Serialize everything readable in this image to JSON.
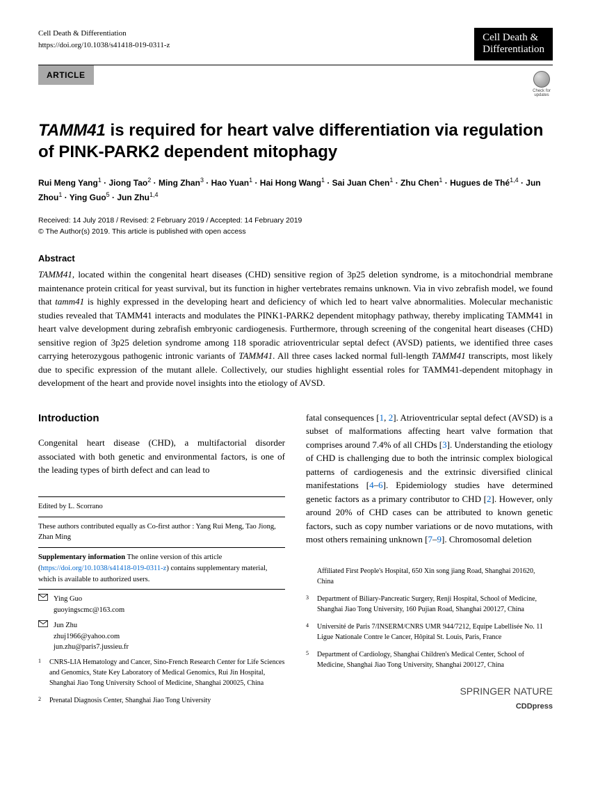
{
  "header": {
    "journal": "Cell Death & Differentiation",
    "doi_url": "https://doi.org/10.1038/s41418-019-0311-z",
    "logo_line1": "Cell Death &",
    "logo_line2": "Differentiation",
    "article_label": "ARTICLE",
    "check_updates": "Check for updates"
  },
  "title_prefix": "TAMM41",
  "title_rest": " is required for heart valve differentiation via regulation of PINK-PARK2 dependent mitophagy",
  "authors_html": "Rui Meng Yang<sup>1</sup> · Jiong Tao<sup>2</sup> · Ming Zhan<sup>3</sup> · Hao Yuan<sup>1</sup> · Hai Hong Wang<sup>1</sup> · Sai Juan Chen<sup>1</sup> · Zhu Chen<sup>1</sup> · Hugues de Thé<sup>1,4</sup> · Jun Zhou<sup>1</sup> · Ying Guo<sup>5</sup> · Jun Zhu<sup>1,4</sup>",
  "dates": {
    "received": "Received: 14 July 2018 / Revised: 2 February 2019 / Accepted: 14 February 2019",
    "copyright": "© The Author(s) 2019. This article is published with open access"
  },
  "abstract": {
    "heading": "Abstract",
    "text_parts": [
      {
        "italic": true,
        "text": "TAMM41"
      },
      {
        "italic": false,
        "text": ", located within the congenital heart diseases (CHD) sensitive region of 3p25 deletion syndrome, is a mitochondrial membrane maintenance protein critical for yeast survival, but its function in higher vertebrates remains unknown. Via in vivo zebrafish model, we found that "
      },
      {
        "italic": true,
        "text": "tamm41"
      },
      {
        "italic": false,
        "text": " is highly expressed in the developing heart and deficiency of which led to heart valve abnormalities. Molecular mechanistic studies revealed that TAMM41 interacts and modulates the PINK1-PARK2 dependent mitophagy pathway, thereby implicating TAMM41 in heart valve development during zebrafish embryonic cardiogenesis. Furthermore, through screening of the congenital heart diseases (CHD) sensitive region of 3p25 deletion syndrome among 118 sporadic atrioventricular septal defect (AVSD) patients, we identified three cases carrying heterozygous pathogenic intronic variants of "
      },
      {
        "italic": true,
        "text": "TAMM41"
      },
      {
        "italic": false,
        "text": ". All three cases lacked normal full-length "
      },
      {
        "italic": true,
        "text": "TAMM41"
      },
      {
        "italic": false,
        "text": " transcripts, most likely due to specific expression of the mutant allele. Collectively, our studies highlight essential roles for TAMM41-dependent mitophagy in development of the heart and provide novel insights into the etiology of AVSD."
      }
    ]
  },
  "introduction": {
    "heading": "Introduction",
    "col1": "Congenital heart disease (CHD), a multifactorial disorder associated with both genetic and environmental factors, is one of the leading types of birth defect and can lead to",
    "col2_parts": [
      {
        "t": "fatal consequences ["
      },
      {
        "r": "1"
      },
      {
        "t": ", "
      },
      {
        "r": "2"
      },
      {
        "t": "]. Atrioventricular septal defect (AVSD) is a subset of malformations affecting heart valve formation that comprises around 7.4% of all CHDs ["
      },
      {
        "r": "3"
      },
      {
        "t": "]. Understanding the etiology of CHD is challenging due to both the intrinsic complex biological patterns of cardiogenesis and the extrinsic diversified clinical manifestations ["
      },
      {
        "r": "4"
      },
      {
        "t": "–"
      },
      {
        "r": "6"
      },
      {
        "t": "]. Epidemiology studies have determined genetic factors as a primary contributor to CHD ["
      },
      {
        "r": "2"
      },
      {
        "t": "]. However, only around 20% of CHD cases can be attributed to known genetic factors, such as copy number variations or de novo mutations, with most others remaining unknown ["
      },
      {
        "r": "7"
      },
      {
        "t": "–"
      },
      {
        "r": "9"
      },
      {
        "t": "]. Chromosomal deletion"
      }
    ]
  },
  "footnotes": {
    "edited_by": "Edited by L. Scorrano",
    "cofirst": "These authors contributed equally as Co-first author : Yang Rui Meng, Tao Jiong, Zhan Ming",
    "supp_label": "Supplementary information",
    "supp_text1": " The online version of this article (",
    "supp_link": "https://doi.org/10.1038/s41418-019-0311-z",
    "supp_text2": ") contains supplementary material, which is available to authorized users.",
    "corr": [
      {
        "name": "Ying Guo",
        "email": "guoyingscmc@163.com"
      },
      {
        "name": "Jun Zhu",
        "email1": "zhuj1966@yahoo.com",
        "email2": "jun.zhu@paris7.jussieu.fr"
      }
    ]
  },
  "affiliations": [
    {
      "n": "1",
      "text": "CNRS-LIA Hematology and Cancer, Sino-French Research Center for Life Sciences and Genomics, State Key Laboratory of Medical Genomics, Rui Jin Hospital, Shanghai Jiao Tong University School of Medicine, Shanghai 200025, China"
    },
    {
      "n": "2",
      "text": "Prenatal Diagnosis Center, Shanghai Jiao Tong University"
    }
  ],
  "affiliations_right": [
    {
      "n": "",
      "text": "Affiliated First People's Hospital, 650 Xin song jiang Road, Shanghai 201620, China"
    },
    {
      "n": "3",
      "text": "Department of Biliary-Pancreatic Surgery, Renji Hospital, School of Medicine, Shanghai Jiao Tong University, 160 Pujian Road, Shanghai 200127, China"
    },
    {
      "n": "4",
      "text": "Université de Paris 7/INSERM/CNRS UMR 944/7212, Equipe Labellisée No. 11 Ligue Nationale Contre le Cancer, Hôpital St. Louis, Paris, France"
    },
    {
      "n": "5",
      "text": "Department of Cardiology, Shanghai Children's Medical Center, School of Medicine, Shanghai Jiao Tong University, Shanghai 200127, China"
    }
  ],
  "footer": {
    "brand": "SPRINGER NATURE",
    "sub": "CDDpress"
  },
  "colors": {
    "link": "#0066cc",
    "article_bar_bg": "#a8a8a8",
    "logo_bg": "#000000",
    "logo_fg": "#ffffff"
  }
}
